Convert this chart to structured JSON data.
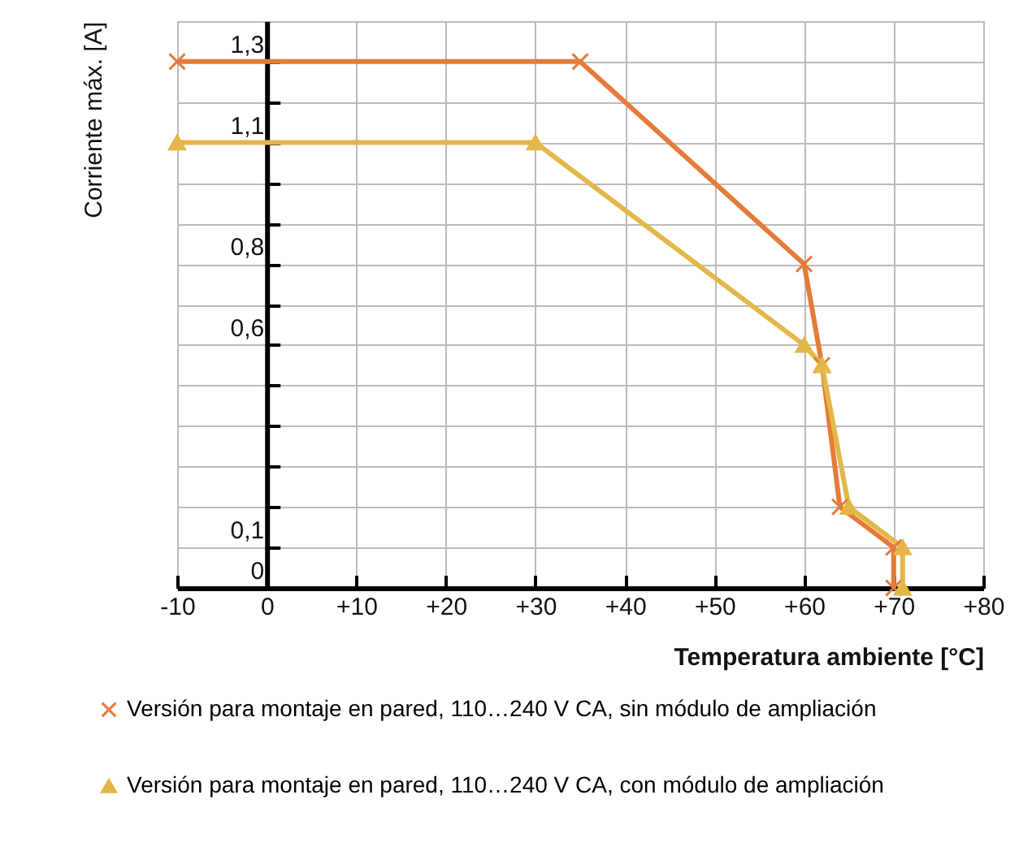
{
  "chart_data": {
    "type": "line",
    "xlabel": "Temperatura ambiente [°C]",
    "ylabel": "Corriente máx. [A]",
    "x": [
      -10,
      35,
      60,
      62,
      64,
      70,
      70
    ],
    "series": [
      {
        "name": "Versión para montaje en pared, 110…240 V CA, sin módulo de ampliación",
        "color": "#e57b3a",
        "marker": "cross",
        "values": [
          1.3,
          1.3,
          0.8,
          0.55,
          0.2,
          0.1,
          0
        ]
      },
      {
        "name": "Versión para montaje en pared, 110…240 V CA, con módulo de ampliación",
        "color": "#e3b748",
        "marker": "triangle",
        "x": [
          -10,
          30,
          60,
          62,
          65,
          71,
          71
        ],
        "values": [
          1.1,
          1.1,
          0.6,
          0.55,
          0.2,
          0.1,
          0
        ]
      }
    ],
    "xlim": [
      -10,
      80
    ],
    "xticks": [
      -10,
      0,
      {
        "value": 10,
        "label": "+10"
      },
      {
        "value": 20,
        "label": "+20"
      },
      {
        "value": 30,
        "label": "+30"
      },
      {
        "value": 40,
        "label": "+40"
      },
      {
        "value": 50,
        "label": "+50"
      },
      {
        "value": 60,
        "label": "+60"
      },
      {
        "value": 70,
        "label": "+70"
      },
      {
        "value": 80,
        "label": "+80"
      }
    ],
    "ylim": [
      0,
      1.4
    ],
    "yticks": [
      0,
      {
        "value": 0.1,
        "label": "0,1"
      },
      {
        "value": 0.2,
        "label": null
      },
      {
        "value": 0.3,
        "label": null
      },
      {
        "value": 0.4,
        "label": null
      },
      {
        "value": 0.5,
        "label": null
      },
      {
        "value": 0.6,
        "label": "0,6"
      },
      {
        "value": 0.7,
        "label": null
      },
      {
        "value": 0.8,
        "label": "0,8"
      },
      {
        "value": 0.9,
        "label": null
      },
      {
        "value": 1.0,
        "label": null
      },
      {
        "value": 1.1,
        "label": "1,1"
      },
      {
        "value": 1.2,
        "label": null
      },
      {
        "value": 1.3,
        "label": "1,3"
      }
    ],
    "grid": true,
    "legend": "bottom",
    "line_style": "solid"
  }
}
